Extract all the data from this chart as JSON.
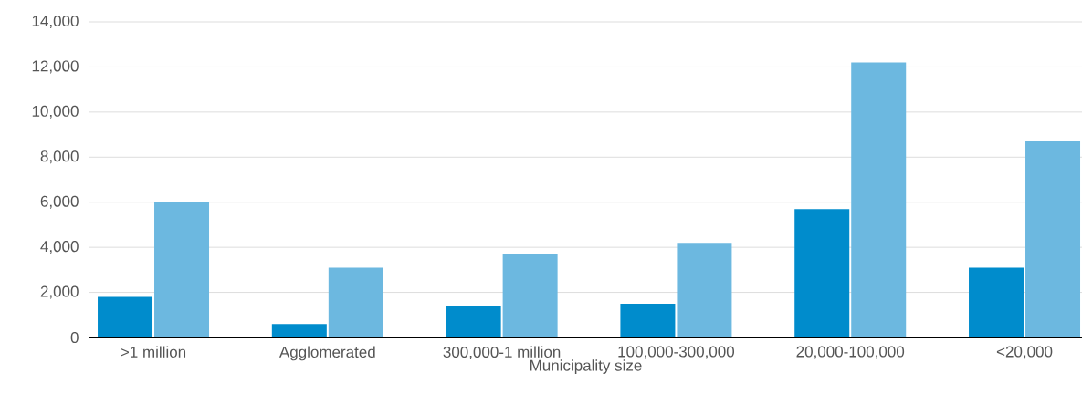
{
  "chart_data": {
    "type": "bar",
    "xlabel": "Municipality size",
    "categories": [
      ">1 million",
      "Agglomerated",
      "300,000-1 million",
      "100,000-300,000",
      "20,000-100,000",
      "<20,000"
    ],
    "series": [
      {
        "color": "#008ccc",
        "values": [
          1800,
          600,
          1400,
          1500,
          5700,
          3100
        ]
      },
      {
        "color": "#6cb8e0",
        "values": [
          6000,
          3100,
          3700,
          4200,
          12200,
          8700
        ]
      }
    ],
    "ylim": [
      0,
      14000
    ],
    "yticks": [
      {
        "value": 0,
        "label": "0"
      },
      {
        "value": 2000,
        "label": "2,000"
      },
      {
        "value": 4000,
        "label": "4,000"
      },
      {
        "value": 6000,
        "label": "6,000"
      },
      {
        "value": 8000,
        "label": "8,000"
      },
      {
        "value": 10000,
        "label": "10,000"
      },
      {
        "value": 12000,
        "label": "12,000"
      },
      {
        "value": 14000,
        "label": "14,000"
      }
    ],
    "grid": "y"
  }
}
